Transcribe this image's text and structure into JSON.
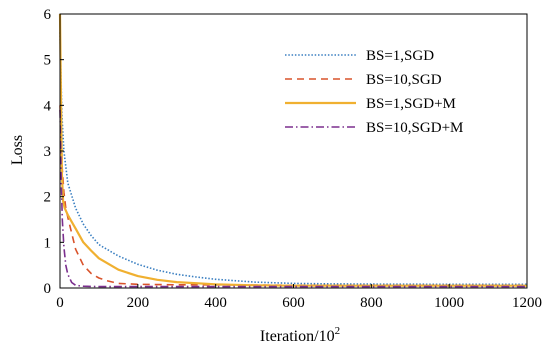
{
  "chart_data": {
    "type": "line",
    "title": "",
    "xlabel": "Iteration/10",
    "xlabel_exponent": "2",
    "ylabel": "Loss",
    "xlim": [
      0,
      1200
    ],
    "ylim": [
      0,
      6
    ],
    "xticks": [
      0,
      200,
      400,
      600,
      800,
      1000,
      1200
    ],
    "yticks": [
      0,
      1,
      2,
      3,
      4,
      5,
      6
    ],
    "grid": false,
    "legend_position": "top-right",
    "series": [
      {
        "name": "BS=1,SGD",
        "color": "#3a7fc1",
        "style": "dotted",
        "x": [
          0,
          5,
          10,
          20,
          40,
          60,
          80,
          100,
          150,
          200,
          250,
          300,
          350,
          400,
          450,
          500,
          600,
          700,
          800,
          1000,
          1200
        ],
        "y": [
          5.6,
          3.8,
          3.0,
          2.3,
          1.75,
          1.4,
          1.15,
          0.95,
          0.7,
          0.52,
          0.39,
          0.3,
          0.24,
          0.19,
          0.16,
          0.13,
          0.1,
          0.09,
          0.085,
          0.08,
          0.08
        ]
      },
      {
        "name": "BS=10,SGD",
        "color": "#d9532b",
        "style": "dashed",
        "x": [
          0,
          3,
          6,
          10,
          15,
          20,
          30,
          40,
          60,
          80,
          100,
          120,
          150,
          200,
          300,
          400,
          600,
          800,
          1000,
          1200
        ],
        "y": [
          4.0,
          3.3,
          2.6,
          2.1,
          1.75,
          1.55,
          1.2,
          0.85,
          0.5,
          0.32,
          0.22,
          0.16,
          0.1,
          0.08,
          0.07,
          0.07,
          0.06,
          0.06,
          0.06,
          0.06
        ]
      },
      {
        "name": "BS=1,SGD+M",
        "color": "#f0b030",
        "style": "solid",
        "x": [
          0,
          2,
          5,
          8,
          12,
          20,
          30,
          40,
          60,
          80,
          100,
          150,
          200,
          250,
          300,
          400,
          500,
          600,
          800,
          1000,
          1200
        ],
        "y": [
          6.0,
          4.5,
          2.5,
          1.9,
          1.75,
          1.6,
          1.45,
          1.3,
          1.0,
          0.82,
          0.65,
          0.4,
          0.26,
          0.18,
          0.13,
          0.08,
          0.06,
          0.05,
          0.05,
          0.05,
          0.05
        ]
      },
      {
        "name": "BS=10,SGD+M",
        "color": "#7b2f8e",
        "style": "dashdot",
        "x": [
          0,
          3,
          6,
          10,
          15,
          20,
          30,
          40,
          60,
          100,
          200,
          400,
          600,
          800,
          1000,
          1200
        ],
        "y": [
          3.9,
          2.4,
          1.5,
          0.9,
          0.5,
          0.3,
          0.12,
          0.06,
          0.04,
          0.03,
          0.03,
          0.03,
          0.03,
          0.03,
          0.03,
          0.03
        ]
      }
    ]
  }
}
